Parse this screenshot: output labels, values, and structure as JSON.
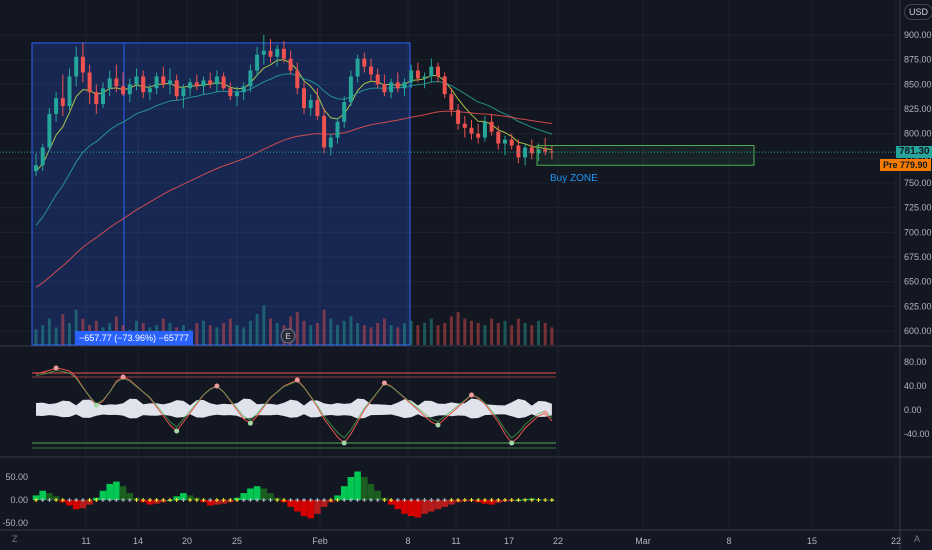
{
  "currency": "USD",
  "price_axis": {
    "labels": [
      "900.00",
      "875.00",
      "850.00",
      "825.00",
      "800.00",
      "775.00",
      "750.00",
      "725.00",
      "700.00",
      "675.00",
      "650.00",
      "625.00",
      "600.00"
    ]
  },
  "last_price": {
    "value": "781.30",
    "color": "#26a69a"
  },
  "pre_market": {
    "label": "Pre",
    "value": "779.90",
    "color": "#f57c00"
  },
  "measure_label": "−657.77 (−73.96%) −65777",
  "buy_zone_label": "Buy ZONE",
  "earnings_marker": "E",
  "time_axis": {
    "labels": [
      "11",
      "14",
      "20",
      "25",
      "Feb",
      "8",
      "11",
      "17",
      "22",
      "Mar",
      "8",
      "15",
      "22"
    ]
  },
  "corner_buttons": {
    "left": "Z",
    "right": "A"
  },
  "chart_data": [
    {
      "type": "candlestick",
      "panel": "price",
      "ylim": [
        590,
        910
      ],
      "ohlc": [
        [
          762,
          780,
          757,
          768
        ],
        [
          768,
          790,
          762,
          786
        ],
        [
          786,
          826,
          782,
          820
        ],
        [
          820,
          842,
          812,
          836
        ],
        [
          836,
          860,
          818,
          828
        ],
        [
          828,
          866,
          824,
          858
        ],
        [
          858,
          888,
          848,
          878
        ],
        [
          878,
          892,
          852,
          862
        ],
        [
          862,
          870,
          830,
          842
        ],
        [
          842,
          850,
          820,
          830
        ],
        [
          830,
          852,
          826,
          846
        ],
        [
          846,
          864,
          838,
          856
        ],
        [
          856,
          870,
          842,
          848
        ],
        [
          848,
          862,
          838,
          840
        ],
        [
          840,
          856,
          832,
          850
        ],
        [
          850,
          866,
          844,
          858
        ],
        [
          858,
          864,
          836,
          842
        ],
        [
          842,
          850,
          834,
          846
        ],
        [
          846,
          862,
          840,
          858
        ],
        [
          858,
          868,
          846,
          850
        ],
        [
          850,
          866,
          840,
          854
        ],
        [
          854,
          860,
          834,
          838
        ],
        [
          838,
          850,
          826,
          846
        ],
        [
          846,
          856,
          838,
          852
        ],
        [
          852,
          860,
          844,
          848
        ],
        [
          848,
          858,
          840,
          854
        ],
        [
          854,
          862,
          846,
          850
        ],
        [
          850,
          864,
          842,
          858
        ],
        [
          858,
          862,
          844,
          846
        ],
        [
          846,
          852,
          834,
          838
        ],
        [
          838,
          848,
          828,
          842
        ],
        [
          842,
          852,
          834,
          848
        ],
        [
          848,
          870,
          842,
          864
        ],
        [
          864,
          888,
          858,
          880
        ],
        [
          880,
          900,
          870,
          884
        ],
        [
          884,
          896,
          872,
          878
        ],
        [
          878,
          890,
          868,
          886
        ],
        [
          886,
          894,
          872,
          876
        ],
        [
          876,
          884,
          860,
          864
        ],
        [
          864,
          872,
          840,
          846
        ],
        [
          846,
          852,
          820,
          826
        ],
        [
          826,
          840,
          818,
          834
        ],
        [
          834,
          846,
          814,
          818
        ],
        [
          818,
          826,
          780,
          786
        ],
        [
          786,
          800,
          778,
          796
        ],
        [
          796,
          816,
          790,
          812
        ],
        [
          812,
          838,
          806,
          832
        ],
        [
          832,
          864,
          828,
          858
        ],
        [
          858,
          880,
          852,
          876
        ],
        [
          876,
          882,
          862,
          868
        ],
        [
          868,
          876,
          854,
          860
        ],
        [
          860,
          866,
          846,
          850
        ],
        [
          850,
          860,
          838,
          842
        ],
        [
          842,
          856,
          836,
          852
        ],
        [
          852,
          862,
          842,
          846
        ],
        [
          846,
          856,
          838,
          852
        ],
        [
          852,
          870,
          846,
          864
        ],
        [
          864,
          872,
          852,
          856
        ],
        [
          856,
          862,
          846,
          858
        ],
        [
          858,
          876,
          852,
          868
        ],
        [
          868,
          872,
          852,
          858
        ],
        [
          858,
          862,
          836,
          840
        ],
        [
          840,
          846,
          818,
          824
        ],
        [
          824,
          830,
          804,
          810
        ],
        [
          810,
          818,
          796,
          806
        ],
        [
          806,
          814,
          794,
          800
        ],
        [
          800,
          810,
          790,
          796
        ],
        [
          796,
          818,
          792,
          812
        ],
        [
          812,
          820,
          798,
          802
        ],
        [
          802,
          808,
          784,
          790
        ],
        [
          790,
          798,
          778,
          794
        ],
        [
          794,
          800,
          784,
          788
        ],
        [
          788,
          794,
          770,
          776
        ],
        [
          776,
          790,
          768,
          786
        ],
        [
          786,
          794,
          774,
          780
        ],
        [
          780,
          790,
          772,
          784
        ],
        [
          784,
          796,
          778,
          782
        ],
        [
          782,
          788,
          774,
          781
        ]
      ],
      "moving_averages": [
        {
          "name": "MA fast",
          "color": "#c8e14a"
        },
        {
          "name": "MA mid",
          "color": "#26a69a"
        },
        {
          "name": "MA slow",
          "color": "#ef5350"
        }
      ],
      "buy_zone": {
        "price_low": 768,
        "price_high": 788
      },
      "volume": [
        7,
        9,
        12,
        8,
        14,
        10,
        16,
        12,
        9,
        11,
        8,
        10,
        13,
        9,
        7,
        11,
        10,
        8,
        9,
        12,
        10,
        8,
        9,
        7,
        10,
        11,
        9,
        8,
        10,
        12,
        9,
        8,
        11,
        14,
        18,
        12,
        10,
        9,
        13,
        15,
        11,
        9,
        10,
        16,
        12,
        9,
        11,
        13,
        10,
        9,
        8,
        10,
        12,
        9,
        8,
        10,
        11,
        9,
        10,
        12,
        9,
        10,
        13,
        15,
        12,
        11,
        10,
        9,
        12,
        10,
        11,
        9,
        12,
        10,
        9,
        11,
        10,
        8
      ]
    },
    {
      "type": "line",
      "panel": "oscillator",
      "ylim": [
        -75,
        100
      ],
      "levels": {
        "upper": 60,
        "lower": -55
      },
      "series": [
        {
          "values": [
            60,
            63,
            66,
            70,
            68,
            65,
            55,
            38,
            22,
            8,
            15,
            30,
            48,
            55,
            50,
            40,
            30,
            20,
            5,
            -10,
            -25,
            -35,
            -20,
            -5,
            10,
            25,
            35,
            40,
            30,
            15,
            0,
            -15,
            -22,
            -10,
            5,
            20,
            30,
            40,
            45,
            50,
            38,
            22,
            5,
            -15,
            -30,
            -45,
            -55,
            -40,
            -20,
            0,
            15,
            30,
            45,
            40,
            30,
            20,
            10,
            0,
            -10,
            -20,
            -25,
            -15,
            -5,
            5,
            15,
            25,
            20,
            10,
            -5,
            -20,
            -40,
            -55,
            -45,
            -30,
            -20,
            -10,
            -5,
            -18
          ]
        }
      ],
      "histogram_dots": "green/red markers at oscillator turning points"
    },
    {
      "type": "histogram",
      "panel": "momentum",
      "ylim": [
        -60,
        70
      ],
      "y_ticks": [
        "50.00",
        "0.00",
        "-50.00"
      ],
      "values": [
        10,
        20,
        15,
        8,
        -5,
        -12,
        -20,
        -18,
        -10,
        5,
        20,
        35,
        40,
        30,
        15,
        5,
        -5,
        -10,
        -8,
        -5,
        0,
        8,
        15,
        10,
        5,
        -5,
        -12,
        -10,
        -8,
        -5,
        5,
        15,
        25,
        30,
        25,
        15,
        5,
        -5,
        -15,
        -25,
        -35,
        -40,
        -30,
        -15,
        -5,
        10,
        30,
        50,
        62,
        50,
        35,
        20,
        5,
        -10,
        -20,
        -30,
        -35,
        -38,
        -30,
        -25,
        -20,
        -15,
        -10,
        -5,
        -3,
        -2,
        -5,
        -8,
        -10,
        -6,
        -3,
        -1,
        0,
        2,
        3,
        2,
        1,
        0
      ]
    }
  ]
}
